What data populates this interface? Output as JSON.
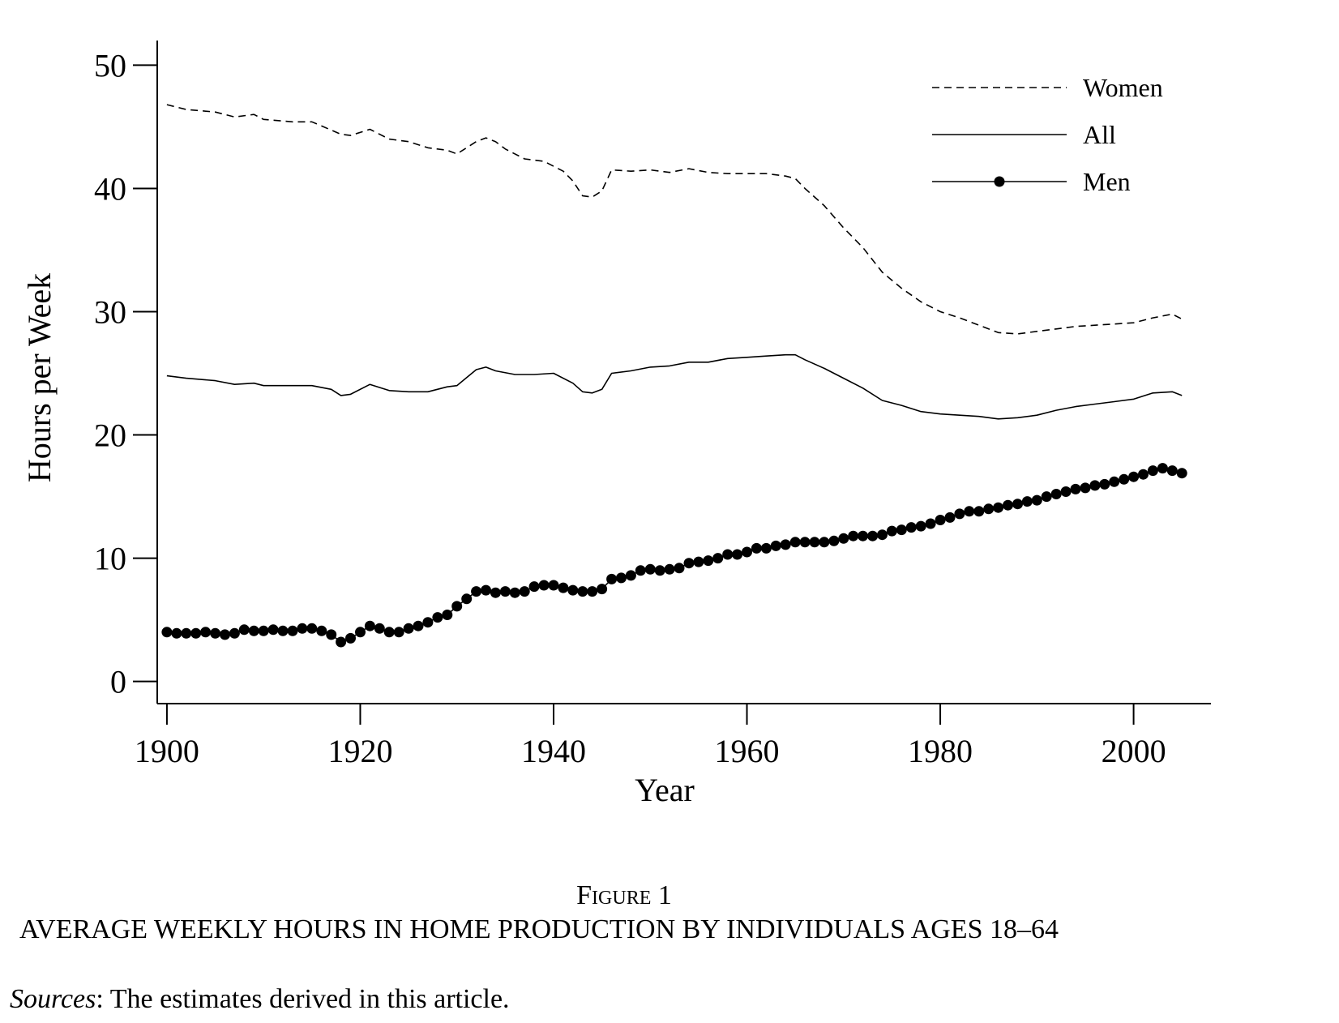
{
  "chart_data": {
    "type": "line",
    "title": "",
    "xlabel": "Year",
    "ylabel": "Hours per Week",
    "xlim": [
      1899,
      2008
    ],
    "ylim": [
      -1.8,
      52
    ],
    "xticks": [
      1900,
      1920,
      1940,
      1960,
      1980,
      2000
    ],
    "yticks": [
      0,
      10,
      20,
      30,
      40,
      50
    ],
    "xtick_labels": [
      "1900",
      "1920",
      "1940",
      "1960",
      "1980",
      "2000"
    ],
    "ytick_labels": [
      "0",
      "10",
      "20",
      "30",
      "40",
      "50"
    ],
    "grid": false,
    "legend": "top-right",
    "series": [
      {
        "name": "Women",
        "style": "dashed",
        "points": [
          [
            1900,
            46.8
          ],
          [
            1902,
            46.4
          ],
          [
            1905,
            46.2
          ],
          [
            1907,
            45.8
          ],
          [
            1909,
            46.0
          ],
          [
            1910,
            45.6
          ],
          [
            1913,
            45.4
          ],
          [
            1915,
            45.4
          ],
          [
            1918,
            44.4
          ],
          [
            1919,
            44.3
          ],
          [
            1921,
            44.8
          ],
          [
            1923,
            44.0
          ],
          [
            1925,
            43.8
          ],
          [
            1927,
            43.3
          ],
          [
            1929,
            43.1
          ],
          [
            1930,
            42.8
          ],
          [
            1932,
            43.8
          ],
          [
            1933,
            44.1
          ],
          [
            1934,
            43.8
          ],
          [
            1935,
            43.2
          ],
          [
            1937,
            42.4
          ],
          [
            1939,
            42.2
          ],
          [
            1941,
            41.4
          ],
          [
            1942,
            40.6
          ],
          [
            1943,
            39.4
          ],
          [
            1944,
            39.3
          ],
          [
            1945,
            39.8
          ],
          [
            1946,
            41.5
          ],
          [
            1948,
            41.4
          ],
          [
            1950,
            41.5
          ],
          [
            1952,
            41.3
          ],
          [
            1954,
            41.6
          ],
          [
            1956,
            41.3
          ],
          [
            1958,
            41.2
          ],
          [
            1960,
            41.2
          ],
          [
            1962,
            41.2
          ],
          [
            1964,
            41.0
          ],
          [
            1965,
            40.8
          ],
          [
            1966,
            40.0
          ],
          [
            1968,
            38.6
          ],
          [
            1970,
            36.8
          ],
          [
            1972,
            35.2
          ],
          [
            1974,
            33.2
          ],
          [
            1976,
            31.9
          ],
          [
            1978,
            30.8
          ],
          [
            1980,
            30.0
          ],
          [
            1982,
            29.5
          ],
          [
            1984,
            28.9
          ],
          [
            1986,
            28.3
          ],
          [
            1988,
            28.2
          ],
          [
            1990,
            28.4
          ],
          [
            1992,
            28.6
          ],
          [
            1994,
            28.8
          ],
          [
            1996,
            28.9
          ],
          [
            1998,
            29.0
          ],
          [
            2000,
            29.1
          ],
          [
            2002,
            29.5
          ],
          [
            2004,
            29.8
          ],
          [
            2005,
            29.4
          ]
        ]
      },
      {
        "name": "All",
        "style": "solid",
        "points": [
          [
            1900,
            24.8
          ],
          [
            1902,
            24.6
          ],
          [
            1905,
            24.4
          ],
          [
            1907,
            24.1
          ],
          [
            1909,
            24.2
          ],
          [
            1910,
            24.0
          ],
          [
            1913,
            24.0
          ],
          [
            1915,
            24.0
          ],
          [
            1917,
            23.7
          ],
          [
            1918,
            23.2
          ],
          [
            1919,
            23.3
          ],
          [
            1921,
            24.1
          ],
          [
            1923,
            23.6
          ],
          [
            1925,
            23.5
          ],
          [
            1927,
            23.5
          ],
          [
            1929,
            23.9
          ],
          [
            1930,
            24.0
          ],
          [
            1932,
            25.3
          ],
          [
            1933,
            25.5
          ],
          [
            1934,
            25.2
          ],
          [
            1936,
            24.9
          ],
          [
            1938,
            24.9
          ],
          [
            1940,
            25.0
          ],
          [
            1942,
            24.2
          ],
          [
            1943,
            23.5
          ],
          [
            1944,
            23.4
          ],
          [
            1945,
            23.7
          ],
          [
            1946,
            25.0
          ],
          [
            1948,
            25.2
          ],
          [
            1950,
            25.5
          ],
          [
            1952,
            25.6
          ],
          [
            1954,
            25.9
          ],
          [
            1956,
            25.9
          ],
          [
            1958,
            26.2
          ],
          [
            1960,
            26.3
          ],
          [
            1962,
            26.4
          ],
          [
            1964,
            26.5
          ],
          [
            1965,
            26.5
          ],
          [
            1966,
            26.1
          ],
          [
            1968,
            25.4
          ],
          [
            1970,
            24.6
          ],
          [
            1972,
            23.8
          ],
          [
            1974,
            22.8
          ],
          [
            1976,
            22.4
          ],
          [
            1978,
            21.9
          ],
          [
            1980,
            21.7
          ],
          [
            1982,
            21.6
          ],
          [
            1984,
            21.5
          ],
          [
            1986,
            21.3
          ],
          [
            1988,
            21.4
          ],
          [
            1990,
            21.6
          ],
          [
            1992,
            22.0
          ],
          [
            1994,
            22.3
          ],
          [
            1996,
            22.5
          ],
          [
            1998,
            22.7
          ],
          [
            2000,
            22.9
          ],
          [
            2002,
            23.4
          ],
          [
            2004,
            23.5
          ],
          [
            2005,
            23.2
          ]
        ]
      },
      {
        "name": "Men",
        "style": "solid-markers",
        "points": [
          [
            1900,
            4.0
          ],
          [
            1901,
            3.9
          ],
          [
            1902,
            3.9
          ],
          [
            1903,
            3.9
          ],
          [
            1904,
            4.0
          ],
          [
            1905,
            3.9
          ],
          [
            1906,
            3.8
          ],
          [
            1907,
            3.9
          ],
          [
            1908,
            4.2
          ],
          [
            1909,
            4.1
          ],
          [
            1910,
            4.1
          ],
          [
            1911,
            4.2
          ],
          [
            1912,
            4.1
          ],
          [
            1913,
            4.1
          ],
          [
            1914,
            4.3
          ],
          [
            1915,
            4.3
          ],
          [
            1916,
            4.1
          ],
          [
            1917,
            3.8
          ],
          [
            1918,
            3.2
          ],
          [
            1919,
            3.5
          ],
          [
            1920,
            4.0
          ],
          [
            1921,
            4.5
          ],
          [
            1922,
            4.3
          ],
          [
            1923,
            4.0
          ],
          [
            1924,
            4.0
          ],
          [
            1925,
            4.3
          ],
          [
            1926,
            4.5
          ],
          [
            1927,
            4.8
          ],
          [
            1928,
            5.2
          ],
          [
            1929,
            5.4
          ],
          [
            1930,
            6.1
          ],
          [
            1931,
            6.7
          ],
          [
            1932,
            7.3
          ],
          [
            1933,
            7.4
          ],
          [
            1934,
            7.2
          ],
          [
            1935,
            7.3
          ],
          [
            1936,
            7.2
          ],
          [
            1937,
            7.3
          ],
          [
            1938,
            7.7
          ],
          [
            1939,
            7.8
          ],
          [
            1940,
            7.8
          ],
          [
            1941,
            7.6
          ],
          [
            1942,
            7.4
          ],
          [
            1943,
            7.3
          ],
          [
            1944,
            7.3
          ],
          [
            1945,
            7.5
          ],
          [
            1946,
            8.3
          ],
          [
            1947,
            8.4
          ],
          [
            1948,
            8.6
          ],
          [
            1949,
            9.0
          ],
          [
            1950,
            9.1
          ],
          [
            1951,
            9.0
          ],
          [
            1952,
            9.1
          ],
          [
            1953,
            9.2
          ],
          [
            1954,
            9.6
          ],
          [
            1955,
            9.7
          ],
          [
            1956,
            9.8
          ],
          [
            1957,
            10.0
          ],
          [
            1958,
            10.3
          ],
          [
            1959,
            10.3
          ],
          [
            1960,
            10.5
          ],
          [
            1961,
            10.8
          ],
          [
            1962,
            10.8
          ],
          [
            1963,
            11.0
          ],
          [
            1964,
            11.1
          ],
          [
            1965,
            11.3
          ],
          [
            1966,
            11.3
          ],
          [
            1967,
            11.3
          ],
          [
            1968,
            11.3
          ],
          [
            1969,
            11.4
          ],
          [
            1970,
            11.6
          ],
          [
            1971,
            11.8
          ],
          [
            1972,
            11.8
          ],
          [
            1973,
            11.8
          ],
          [
            1974,
            11.9
          ],
          [
            1975,
            12.2
          ],
          [
            1976,
            12.3
          ],
          [
            1977,
            12.5
          ],
          [
            1978,
            12.6
          ],
          [
            1979,
            12.8
          ],
          [
            1980,
            13.1
          ],
          [
            1981,
            13.3
          ],
          [
            1982,
            13.6
          ],
          [
            1983,
            13.8
          ],
          [
            1984,
            13.8
          ],
          [
            1985,
            14.0
          ],
          [
            1986,
            14.1
          ],
          [
            1987,
            14.3
          ],
          [
            1988,
            14.4
          ],
          [
            1989,
            14.6
          ],
          [
            1990,
            14.7
          ],
          [
            1991,
            15.0
          ],
          [
            1992,
            15.2
          ],
          [
            1993,
            15.4
          ],
          [
            1994,
            15.6
          ],
          [
            1995,
            15.7
          ],
          [
            1996,
            15.9
          ],
          [
            1997,
            16.0
          ],
          [
            1998,
            16.2
          ],
          [
            1999,
            16.4
          ],
          [
            2000,
            16.6
          ],
          [
            2001,
            16.8
          ],
          [
            2002,
            17.1
          ],
          [
            2003,
            17.3
          ],
          [
            2004,
            17.1
          ],
          [
            2005,
            16.9
          ]
        ]
      }
    ]
  },
  "figure": {
    "number": "Figure 1",
    "title": "AVERAGE WEEKLY HOURS IN HOME PRODUCTION BY INDIVIDUALS AGES 18–64",
    "sources_label": "Sources",
    "sources_text": ": The estimates derived in this article."
  }
}
